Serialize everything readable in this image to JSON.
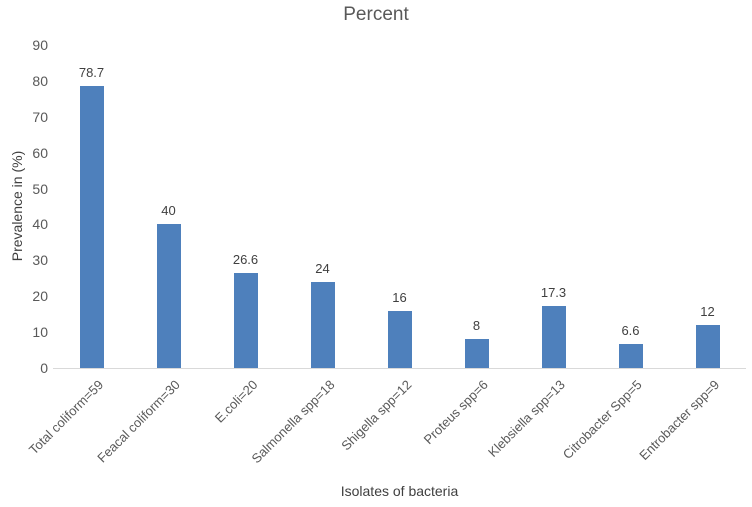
{
  "chart_data": {
    "type": "bar",
    "title": "Percent",
    "xlabel": "Isolates of bacteria",
    "ylabel": "Prevalence in (%)",
    "categories": [
      "Total coliform=59",
      "Feacal coliform=30",
      "E.coli=20",
      "Salmonella spp=18",
      "Shigella spp=12",
      "Proteus spp=6",
      "Klebsiella spp=13",
      "Citrobacter Spp=5",
      "Entrobacter spp=9"
    ],
    "values": [
      78.7,
      40,
      26.6,
      24,
      16,
      8,
      17.3,
      6.6,
      12
    ],
    "value_labels": [
      "78.7",
      "40",
      "26.6",
      "24",
      "16",
      "8",
      "17.3",
      "6.6",
      "12"
    ],
    "yticks": [
      0,
      10,
      20,
      30,
      40,
      50,
      60,
      70,
      80,
      90
    ],
    "ylim": [
      0,
      90
    ],
    "grid": false,
    "legend": false,
    "bar_color": "#4E80BC",
    "axis_line_color": "#D9D9D9",
    "tick_text_color": "#595959",
    "label_text_color": "#404040"
  }
}
